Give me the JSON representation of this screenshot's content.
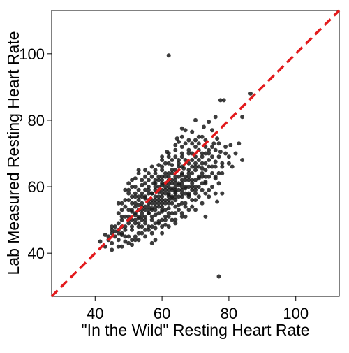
{
  "chart_data": {
    "type": "scatter",
    "title": "",
    "xlabel": "\"In the Wild\" Resting Heart Rate",
    "ylabel": "Lab Measured Resting Heart Rate",
    "xlim": [
      27,
      113
    ],
    "ylim": [
      27,
      113
    ],
    "xticks": [
      40,
      60,
      80,
      100
    ],
    "yticks": [
      40,
      60,
      80,
      100
    ],
    "grid": false,
    "legend": "none",
    "reference_line": {
      "label": "",
      "slope": 1,
      "intercept": 0,
      "style": "dashed",
      "color": "#e31a1c"
    },
    "point_color": "#1a1a1a",
    "points": [
      [
        62,
        99.5
      ],
      [
        86.5,
        88
      ],
      [
        77.5,
        86
      ],
      [
        78.5,
        86
      ],
      [
        84,
        81
      ],
      [
        76,
        81
      ],
      [
        74,
        79.5
      ],
      [
        70,
        80
      ],
      [
        72.5,
        78
      ],
      [
        67,
        77
      ],
      [
        66,
        77.5
      ],
      [
        69,
        76.5
      ],
      [
        75,
        77
      ],
      [
        71,
        75
      ],
      [
        66,
        75
      ],
      [
        73,
        74
      ],
      [
        64.5,
        74.5
      ],
      [
        76.5,
        74.5
      ],
      [
        65,
        73.5
      ],
      [
        75.5,
        73
      ],
      [
        83,
        73
      ],
      [
        80.5,
        72.5
      ],
      [
        64,
        72.5
      ],
      [
        70,
        72
      ],
      [
        74,
        71
      ],
      [
        68,
        71
      ],
      [
        61.5,
        70.5
      ],
      [
        77.5,
        70.5
      ],
      [
        72,
        69
      ],
      [
        66,
        69
      ],
      [
        84,
        68
      ],
      [
        69,
        68
      ],
      [
        76,
        67.5
      ],
      [
        65,
        68
      ],
      [
        59,
        66.5
      ],
      [
        62,
        67
      ],
      [
        70,
        67
      ],
      [
        57,
        66
      ],
      [
        63,
        66.5
      ],
      [
        53,
        65
      ],
      [
        66.5,
        65.5
      ],
      [
        72,
        65.5
      ],
      [
        60,
        65
      ],
      [
        78,
        64
      ],
      [
        69,
        64
      ],
      [
        58,
        64
      ],
      [
        63,
        64
      ],
      [
        55,
        63
      ],
      [
        66,
        63.5
      ],
      [
        61,
        63
      ],
      [
        71,
        62.5
      ],
      [
        52,
        62.5
      ],
      [
        76,
        62.5
      ],
      [
        59,
        62
      ],
      [
        64,
        62
      ],
      [
        56,
        62
      ],
      [
        68,
        62
      ],
      [
        73,
        61.5
      ],
      [
        62,
        61
      ],
      [
        57.5,
        61
      ],
      [
        54,
        60.5
      ],
      [
        65,
        60.5
      ],
      [
        60,
        60.5
      ],
      [
        69,
        60
      ],
      [
        51,
        60
      ],
      [
        58,
        60
      ],
      [
        63,
        59.5
      ],
      [
        67,
        59.5
      ],
      [
        56,
        59
      ],
      [
        61,
        59
      ],
      [
        50,
        59
      ],
      [
        72,
        59
      ],
      [
        59,
        58.5
      ],
      [
        64,
        58.5
      ],
      [
        54,
        58
      ],
      [
        66,
        58
      ],
      [
        57,
        58
      ],
      [
        62,
        57.5
      ],
      [
        68,
        57.5
      ],
      [
        52,
        57
      ],
      [
        60,
        57
      ],
      [
        55,
        56.5
      ],
      [
        63,
        56.5
      ],
      [
        58,
        56
      ],
      [
        70,
        56
      ],
      [
        76.5,
        55.5
      ],
      [
        56,
        55
      ],
      [
        61,
        55
      ],
      [
        53,
        54.5
      ],
      [
        65,
        54.5
      ],
      [
        59,
        54
      ],
      [
        49,
        54
      ],
      [
        67,
        54
      ],
      [
        57,
        53.5
      ],
      [
        62,
        53.5
      ],
      [
        54,
        53
      ],
      [
        51,
        52.5
      ],
      [
        60,
        52.5
      ],
      [
        56,
        52
      ],
      [
        64,
        52
      ],
      [
        52,
        51.5
      ],
      [
        58,
        51.5
      ],
      [
        48,
        51
      ],
      [
        55,
        51
      ],
      [
        61,
        51
      ],
      [
        66,
        51
      ],
      [
        73,
        51
      ],
      [
        53,
        50.5
      ],
      [
        50,
        50
      ],
      [
        57,
        50
      ],
      [
        59,
        49.5
      ],
      [
        63,
        50
      ],
      [
        47,
        49
      ],
      [
        52,
        49
      ],
      [
        55,
        49
      ],
      [
        61,
        48.5
      ],
      [
        49,
        48
      ],
      [
        54,
        48
      ],
      [
        58,
        47.5
      ],
      [
        51,
        47
      ],
      [
        56,
        47
      ],
      [
        46,
        46.5
      ],
      [
        53,
        46
      ],
      [
        60,
        46
      ],
      [
        48,
        45.5
      ],
      [
        50,
        45
      ],
      [
        44,
        45
      ],
      [
        47,
        44
      ],
      [
        52,
        44
      ],
      [
        58,
        44
      ],
      [
        49,
        43.5
      ],
      [
        45,
        43
      ],
      [
        51,
        42.5
      ],
      [
        47,
        42
      ],
      [
        41.5,
        43.5
      ],
      [
        57,
        43
      ],
      [
        43,
        45.5
      ],
      [
        45,
        47
      ],
      [
        48,
        50
      ],
      [
        54,
        51
      ],
      [
        72,
        63
      ],
      [
        69,
        66
      ],
      [
        67,
        62
      ],
      [
        70,
        58
      ],
      [
        60,
        62
      ],
      [
        62,
        63
      ],
      [
        65,
        66
      ],
      [
        74,
        68
      ],
      [
        78,
        66
      ],
      [
        60,
        68
      ],
      [
        57,
        58
      ],
      [
        59,
        60
      ],
      [
        61,
        61
      ],
      [
        63,
        61
      ],
      [
        64,
        60
      ],
      [
        65,
        59
      ],
      [
        66,
        61
      ],
      [
        67,
        63
      ],
      [
        68,
        64
      ],
      [
        70,
        65
      ],
      [
        71,
        66
      ],
      [
        73,
        67
      ],
      [
        74,
        70
      ],
      [
        76,
        71
      ],
      [
        62,
        58
      ],
      [
        64,
        56
      ],
      [
        66,
        57
      ],
      [
        68,
        58
      ],
      [
        55,
        57
      ],
      [
        57,
        55
      ],
      [
        53,
        56
      ],
      [
        55,
        53
      ],
      [
        58,
        53
      ],
      [
        60,
        54
      ],
      [
        62,
        55
      ],
      [
        59,
        56
      ],
      [
        63,
        57
      ],
      [
        61,
        60
      ],
      [
        56,
        60
      ],
      [
        54,
        62
      ],
      [
        58,
        62
      ],
      [
        60,
        63
      ],
      [
        62,
        64
      ],
      [
        64,
        65
      ],
      [
        66,
        66
      ],
      [
        68,
        67
      ],
      [
        70,
        69
      ],
      [
        72,
        70
      ],
      [
        75,
        72
      ],
      [
        66,
        70
      ],
      [
        71,
        71
      ],
      [
        73,
        72
      ],
      [
        69,
        73
      ],
      [
        79,
        72
      ],
      [
        80,
        69
      ],
      [
        81,
        66
      ],
      [
        77,
        64
      ],
      [
        75,
        64
      ],
      [
        73,
        63
      ],
      [
        65,
        63
      ],
      [
        63,
        62
      ],
      [
        58,
        61
      ],
      [
        55,
        61
      ],
      [
        53,
        59
      ],
      [
        52,
        58
      ],
      [
        50,
        56
      ],
      [
        51,
        55
      ],
      [
        53,
        53
      ],
      [
        56,
        54
      ],
      [
        57,
        56
      ],
      [
        59,
        57
      ],
      [
        61,
        58
      ],
      [
        60,
        59
      ],
      [
        62,
        60
      ],
      [
        64,
        61
      ],
      [
        66,
        62
      ],
      [
        68,
        63
      ],
      [
        70,
        62
      ],
      [
        71,
        60
      ],
      [
        69,
        59
      ],
      [
        67,
        58
      ],
      [
        65,
        57
      ],
      [
        63,
        55
      ],
      [
        61,
        53
      ],
      [
        59,
        52
      ],
      [
        57,
        51
      ],
      [
        55,
        50
      ],
      [
        53,
        49
      ],
      [
        51,
        50
      ],
      [
        49,
        51
      ],
      [
        47,
        52
      ],
      [
        48,
        53
      ],
      [
        50,
        53
      ],
      [
        52,
        54
      ],
      [
        54,
        55
      ],
      [
        56,
        56
      ],
      [
        58,
        57
      ],
      [
        60,
        58
      ],
      [
        62,
        59
      ],
      [
        64,
        59
      ],
      [
        67,
        60
      ],
      [
        69,
        61
      ],
      [
        72,
        64
      ],
      [
        74,
        66
      ],
      [
        76,
        66
      ],
      [
        77,
        73
      ],
      [
        72,
        75
      ],
      [
        70,
        74
      ],
      [
        67,
        73
      ],
      [
        64,
        71
      ],
      [
        62,
        70
      ],
      [
        60,
        69
      ],
      [
        58,
        65
      ],
      [
        56,
        64
      ],
      [
        55,
        65
      ],
      [
        53,
        64
      ],
      [
        51,
        62
      ],
      [
        50,
        61
      ],
      [
        49,
        59
      ],
      [
        52,
        60
      ],
      [
        54,
        57
      ],
      [
        56,
        58
      ],
      [
        58,
        59
      ],
      [
        60,
        61
      ],
      [
        62,
        62
      ],
      [
        64,
        63
      ],
      [
        66,
        64
      ],
      [
        68,
        65
      ],
      [
        70,
        66
      ],
      [
        72,
        67
      ],
      [
        73,
        65
      ],
      [
        75,
        66
      ],
      [
        74,
        63
      ],
      [
        71,
        63
      ],
      [
        69,
        62
      ],
      [
        66,
        59
      ],
      [
        64,
        57
      ],
      [
        62,
        56
      ],
      [
        60,
        55
      ],
      [
        58,
        55
      ],
      [
        56,
        53
      ],
      [
        54,
        52
      ],
      [
        52,
        52
      ],
      [
        50,
        51
      ],
      [
        48,
        48
      ],
      [
        46,
        48
      ],
      [
        45,
        46
      ],
      [
        47,
        46
      ],
      [
        49,
        47
      ],
      [
        51,
        48
      ],
      [
        53,
        48
      ],
      [
        55,
        47
      ],
      [
        57,
        48
      ],
      [
        59,
        49
      ],
      [
        61,
        50
      ],
      [
        63,
        52
      ],
      [
        65,
        53
      ],
      [
        67,
        55
      ],
      [
        69,
        56
      ],
      [
        71,
        57
      ],
      [
        73,
        58
      ],
      [
        75,
        60
      ],
      [
        77,
        61
      ],
      [
        78,
        58
      ],
      [
        76,
        58
      ],
      [
        74,
        59
      ],
      [
        72,
        61
      ],
      [
        70,
        60
      ],
      [
        68,
        60
      ],
      [
        66,
        60
      ],
      [
        64,
        58
      ],
      [
        62,
        57
      ],
      [
        60,
        56
      ],
      [
        58,
        54
      ],
      [
        56,
        52
      ],
      [
        54,
        50
      ],
      [
        52,
        50
      ],
      [
        50,
        49
      ],
      [
        48,
        46
      ],
      [
        46,
        45
      ],
      [
        44,
        44
      ],
      [
        43,
        42
      ],
      [
        45,
        41
      ],
      [
        48,
        42
      ],
      [
        50,
        43
      ],
      [
        52,
        45
      ],
      [
        54,
        46
      ],
      [
        56,
        48
      ],
      [
        58,
        49
      ],
      [
        60,
        50
      ],
      [
        62,
        51
      ],
      [
        64,
        54
      ],
      [
        66,
        55
      ],
      [
        68,
        57
      ],
      [
        70,
        59
      ],
      [
        73,
        61
      ],
      [
        76,
        63
      ],
      [
        78,
        67
      ],
      [
        80,
        67
      ],
      [
        82,
        70
      ],
      [
        59,
        63
      ],
      [
        61,
        64
      ],
      [
        63,
        65
      ],
      [
        65,
        67
      ],
      [
        67,
        68
      ],
      [
        69,
        70
      ],
      [
        71,
        73
      ],
      [
        68,
        74
      ],
      [
        63,
        68
      ],
      [
        61,
        67
      ],
      [
        57,
        63
      ],
      [
        55,
        59
      ],
      [
        53,
        57
      ],
      [
        51,
        57
      ],
      [
        50,
        58
      ],
      [
        49,
        56
      ],
      [
        48,
        55
      ],
      [
        47,
        55
      ],
      [
        52,
        55
      ],
      [
        54,
        54
      ],
      [
        60,
        53
      ],
      [
        62,
        52
      ],
      [
        64,
        50
      ],
      [
        66,
        52
      ],
      [
        68,
        53
      ],
      [
        70,
        53
      ],
      [
        72,
        55
      ],
      [
        74,
        57
      ],
      [
        69,
        54
      ],
      [
        67,
        51
      ],
      [
        64,
        49
      ],
      [
        62,
        48
      ],
      [
        60,
        48
      ],
      [
        57,
        46
      ],
      [
        55,
        45
      ],
      [
        53,
        44
      ],
      [
        51,
        44
      ],
      [
        49,
        45
      ],
      [
        47,
        47
      ],
      [
        45,
        48
      ],
      [
        71,
        68
      ],
      [
        73,
        70
      ],
      [
        75,
        69
      ],
      [
        77,
        69
      ],
      [
        79,
        70
      ],
      [
        68,
        70
      ],
      [
        66,
        72
      ],
      [
        64,
        69
      ],
      [
        62,
        69
      ],
      [
        60,
        66
      ],
      [
        65,
        61
      ],
      [
        63,
        59
      ],
      [
        61,
        56
      ],
      [
        59,
        55
      ],
      [
        57,
        53
      ],
      [
        55,
        54
      ],
      [
        53,
        51
      ],
      [
        51,
        53
      ],
      [
        77,
        33
      ]
    ]
  }
}
